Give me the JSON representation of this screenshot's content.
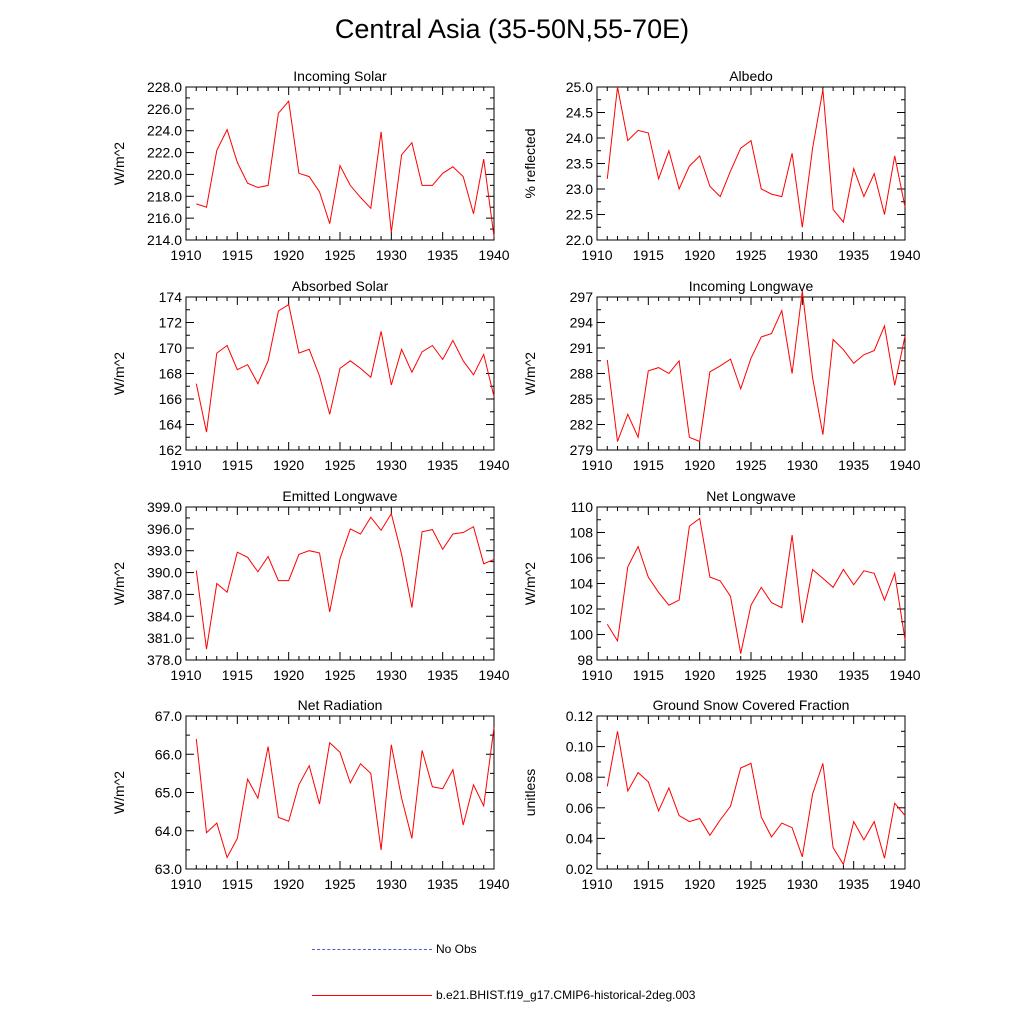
{
  "figure": {
    "title": "Central Asia (35-50N,55-70E)"
  },
  "legend": [
    {
      "label": "No Obs",
      "color": "#4a5fd0",
      "style": "dashed"
    },
    {
      "label": "b.e21.BHIST.f19_g17.CMIP6-historical-2deg.003",
      "color": "#ff0000",
      "style": "solid"
    }
  ],
  "chart_data": [
    {
      "type": "line",
      "title": "Incoming Solar",
      "ylabel": "W/m^2",
      "xlim": [
        1910,
        1940
      ],
      "ylim": [
        214,
        228
      ],
      "yticks": [
        "214.0",
        "216.0",
        "218.0",
        "220.0",
        "222.0",
        "224.0",
        "226.0",
        "228.0"
      ],
      "xticks": [
        "1910",
        "1915",
        "1920",
        "1925",
        "1930",
        "1935",
        "1940"
      ],
      "x": [
        1911,
        1912,
        1913,
        1914,
        1915,
        1916,
        1917,
        1918,
        1919,
        1920,
        1921,
        1922,
        1923,
        1924,
        1925,
        1926,
        1927,
        1928,
        1929,
        1930,
        1931,
        1932,
        1933,
        1934,
        1935,
        1936,
        1937,
        1938,
        1939,
        1940
      ],
      "series": [
        {
          "color": "#ff0000",
          "values": [
            217.3,
            217.0,
            222.2,
            224.1,
            221.1,
            219.2,
            218.8,
            219.0,
            225.6,
            226.7,
            220.1,
            219.8,
            218.4,
            215.5,
            220.8,
            219.0,
            217.9,
            216.9,
            223.9,
            214.7,
            221.8,
            222.9,
            219.0,
            219.0,
            220.1,
            220.7,
            219.8,
            216.4,
            221.4,
            214.3
          ]
        }
      ]
    },
    {
      "type": "line",
      "title": "Albedo",
      "ylabel": "% reflected",
      "xlim": [
        1910,
        1940
      ],
      "ylim": [
        22.0,
        25.0
      ],
      "yticks": [
        "22.0",
        "22.5",
        "23.0",
        "23.5",
        "24.0",
        "24.5",
        "25.0"
      ],
      "xticks": [
        "1910",
        "1915",
        "1920",
        "1925",
        "1930",
        "1935",
        "1940"
      ],
      "x": [
        1911,
        1912,
        1913,
        1914,
        1915,
        1916,
        1917,
        1918,
        1919,
        1920,
        1921,
        1922,
        1923,
        1924,
        1925,
        1926,
        1927,
        1928,
        1929,
        1930,
        1931,
        1932,
        1933,
        1934,
        1935,
        1936,
        1937,
        1938,
        1939,
        1940
      ],
      "series": [
        {
          "color": "#ff0000",
          "values": [
            23.2,
            25.0,
            23.95,
            24.15,
            24.1,
            23.2,
            23.75,
            23.0,
            23.45,
            23.65,
            23.05,
            22.85,
            23.35,
            23.8,
            23.95,
            23.0,
            22.9,
            22.85,
            23.7,
            22.25,
            23.8,
            24.95,
            22.6,
            22.35,
            23.4,
            22.85,
            23.3,
            22.5,
            23.65,
            22.65
          ]
        }
      ]
    },
    {
      "type": "line",
      "title": "Absorbed Solar",
      "ylabel": "W/m^2",
      "xlim": [
        1910,
        1940
      ],
      "ylim": [
        162,
        174
      ],
      "yticks": [
        "162",
        "164",
        "166",
        "168",
        "170",
        "172",
        "174"
      ],
      "xticks": [
        "1910",
        "1915",
        "1920",
        "1925",
        "1930",
        "1935",
        "1940"
      ],
      "x": [
        1911,
        1912,
        1913,
        1914,
        1915,
        1916,
        1917,
        1918,
        1919,
        1920,
        1921,
        1922,
        1923,
        1924,
        1925,
        1926,
        1927,
        1928,
        1929,
        1930,
        1931,
        1932,
        1933,
        1934,
        1935,
        1936,
        1937,
        1938,
        1939,
        1940
      ],
      "series": [
        {
          "color": "#ff0000",
          "values": [
            167.2,
            163.4,
            169.6,
            170.2,
            168.3,
            168.7,
            167.2,
            169.0,
            172.9,
            173.4,
            169.6,
            169.9,
            167.8,
            164.8,
            168.4,
            169.0,
            168.4,
            167.7,
            171.3,
            167.1,
            169.9,
            168.1,
            169.7,
            170.2,
            169.1,
            170.6,
            169.0,
            167.9,
            169.5,
            166.2
          ]
        }
      ]
    },
    {
      "type": "line",
      "title": "Incoming Longwave",
      "ylabel": "W/m^2",
      "xlim": [
        1910,
        1940
      ],
      "ylim": [
        279,
        297
      ],
      "yticks": [
        "279",
        "282",
        "285",
        "288",
        "291",
        "294",
        "297"
      ],
      "xticks": [
        "1910",
        "1915",
        "1920",
        "1925",
        "1930",
        "1935",
        "1940"
      ],
      "x": [
        1911,
        1912,
        1913,
        1914,
        1915,
        1916,
        1917,
        1918,
        1919,
        1920,
        1921,
        1922,
        1923,
        1924,
        1925,
        1926,
        1927,
        1928,
        1929,
        1930,
        1931,
        1932,
        1933,
        1934,
        1935,
        1936,
        1937,
        1938,
        1939,
        1940
      ],
      "series": [
        {
          "color": "#ff0000",
          "values": [
            289.6,
            280.0,
            283.2,
            280.5,
            288.3,
            288.7,
            288.0,
            289.5,
            280.5,
            280.0,
            288.2,
            288.9,
            289.7,
            286.2,
            289.8,
            292.3,
            292.7,
            295.4,
            288.0,
            297.7,
            287.5,
            280.8,
            292.0,
            290.8,
            289.2,
            290.2,
            290.7,
            293.6,
            286.6,
            292.4
          ]
        }
      ]
    },
    {
      "type": "line",
      "title": "Emitted Longwave",
      "ylabel": "W/m^2",
      "xlim": [
        1910,
        1940
      ],
      "ylim": [
        378,
        399
      ],
      "yticks": [
        "378.0",
        "381.0",
        "384.0",
        "387.0",
        "390.0",
        "393.0",
        "396.0",
        "399.0"
      ],
      "xticks": [
        "1910",
        "1915",
        "1920",
        "1925",
        "1930",
        "1935",
        "1940"
      ],
      "x": [
        1911,
        1912,
        1913,
        1914,
        1915,
        1916,
        1917,
        1918,
        1919,
        1920,
        1921,
        1922,
        1923,
        1924,
        1925,
        1926,
        1927,
        1928,
        1929,
        1930,
        1931,
        1932,
        1933,
        1934,
        1935,
        1936,
        1937,
        1938,
        1939,
        1940
      ],
      "series": [
        {
          "color": "#ff0000",
          "values": [
            390.3,
            379.5,
            388.5,
            387.3,
            392.8,
            392.1,
            390.1,
            392.2,
            388.9,
            388.9,
            392.5,
            393.0,
            392.7,
            384.6,
            391.9,
            396.0,
            395.3,
            397.6,
            395.8,
            398.1,
            392.5,
            385.2,
            395.6,
            395.9,
            393.2,
            395.3,
            395.5,
            396.3,
            391.2,
            391.8
          ]
        }
      ]
    },
    {
      "type": "line",
      "title": "Net Longwave",
      "ylabel": "W/m^2",
      "xlim": [
        1910,
        1940
      ],
      "ylim": [
        98,
        110
      ],
      "yticks": [
        "98",
        "100",
        "102",
        "104",
        "106",
        "108",
        "110"
      ],
      "xticks": [
        "1910",
        "1915",
        "1920",
        "1925",
        "1930",
        "1935",
        "1940"
      ],
      "x": [
        1911,
        1912,
        1913,
        1914,
        1915,
        1916,
        1917,
        1918,
        1919,
        1920,
        1921,
        1922,
        1923,
        1924,
        1925,
        1926,
        1927,
        1928,
        1929,
        1930,
        1931,
        1932,
        1933,
        1934,
        1935,
        1936,
        1937,
        1938,
        1939,
        1940
      ],
      "series": [
        {
          "color": "#ff0000",
          "values": [
            100.8,
            99.5,
            105.3,
            106.9,
            104.5,
            103.3,
            102.3,
            102.7,
            108.5,
            109.1,
            104.5,
            104.2,
            103.0,
            98.5,
            102.3,
            103.7,
            102.5,
            102.1,
            107.8,
            100.9,
            105.1,
            104.4,
            103.7,
            105.1,
            103.9,
            105.0,
            104.8,
            102.7,
            104.8,
            99.6
          ]
        }
      ]
    },
    {
      "type": "line",
      "title": "Net Radiation",
      "ylabel": "W/m^2",
      "xlim": [
        1910,
        1940
      ],
      "ylim": [
        63.0,
        67.0
      ],
      "yticks": [
        "63.0",
        "64.0",
        "65.0",
        "66.0",
        "67.0"
      ],
      "xticks": [
        "1910",
        "1915",
        "1920",
        "1925",
        "1930",
        "1935",
        "1940"
      ],
      "x": [
        1911,
        1912,
        1913,
        1914,
        1915,
        1916,
        1917,
        1918,
        1919,
        1920,
        1921,
        1922,
        1923,
        1924,
        1925,
        1926,
        1927,
        1928,
        1929,
        1930,
        1931,
        1932,
        1933,
        1934,
        1935,
        1936,
        1937,
        1938,
        1939,
        1940
      ],
      "series": [
        {
          "color": "#ff0000",
          "values": [
            66.4,
            63.95,
            64.2,
            63.3,
            63.8,
            65.35,
            64.85,
            66.2,
            64.35,
            64.25,
            65.2,
            65.7,
            64.7,
            66.3,
            66.05,
            65.25,
            65.75,
            65.5,
            63.5,
            66.25,
            64.85,
            63.8,
            66.1,
            65.15,
            65.1,
            65.6,
            64.15,
            65.2,
            64.65,
            66.7
          ]
        }
      ]
    },
    {
      "type": "line",
      "title": "Ground Snow Covered Fraction",
      "ylabel": "unitless",
      "xlim": [
        1910,
        1940
      ],
      "ylim": [
        0.02,
        0.12
      ],
      "yticks": [
        "0.02",
        "0.04",
        "0.06",
        "0.08",
        "0.10",
        "0.12"
      ],
      "xticks": [
        "1910",
        "1915",
        "1920",
        "1925",
        "1930",
        "1935",
        "1940"
      ],
      "x": [
        1911,
        1912,
        1913,
        1914,
        1915,
        1916,
        1917,
        1918,
        1919,
        1920,
        1921,
        1922,
        1923,
        1924,
        1925,
        1926,
        1927,
        1928,
        1929,
        1930,
        1931,
        1932,
        1933,
        1934,
        1935,
        1936,
        1937,
        1938,
        1939,
        1940
      ],
      "series": [
        {
          "color": "#ff0000",
          "values": [
            0.074,
            0.11,
            0.071,
            0.083,
            0.077,
            0.058,
            0.073,
            0.055,
            0.051,
            0.053,
            0.042,
            0.052,
            0.061,
            0.086,
            0.089,
            0.054,
            0.041,
            0.05,
            0.047,
            0.028,
            0.069,
            0.089,
            0.034,
            0.023,
            0.051,
            0.039,
            0.051,
            0.027,
            0.063,
            0.055
          ]
        }
      ]
    }
  ]
}
